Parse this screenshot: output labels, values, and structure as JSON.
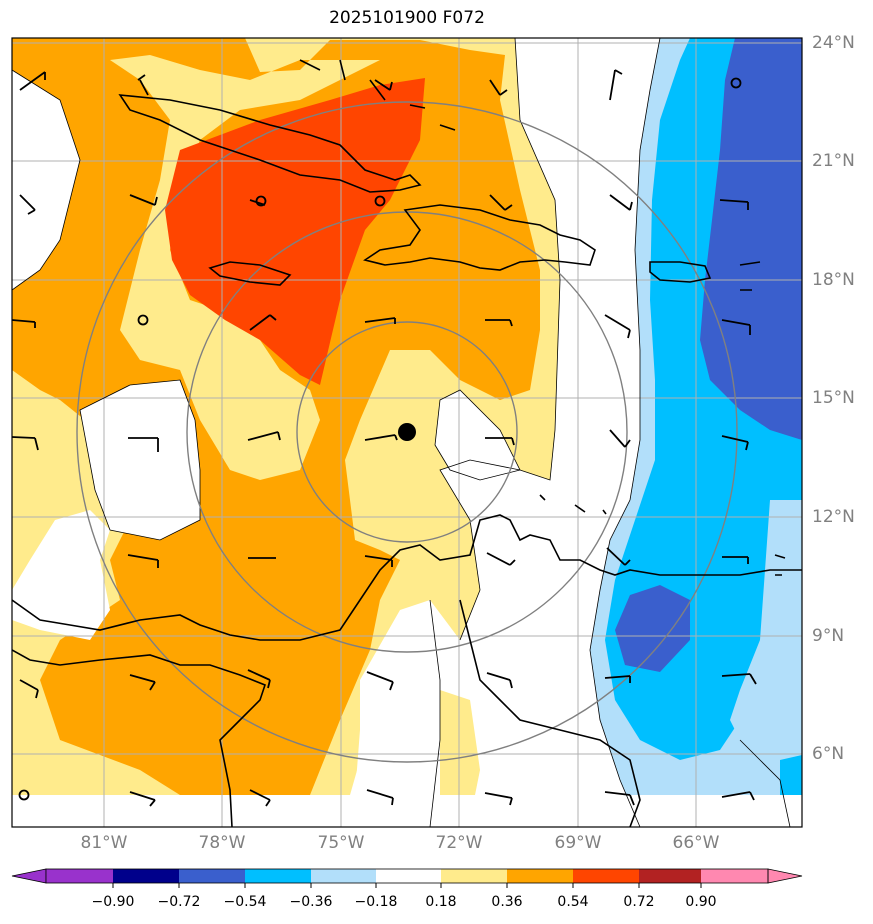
{
  "title": "2025101900 F072",
  "lat_labels": [
    "24°N",
    "21°N",
    "18°N",
    "15°N",
    "12°N",
    "9°N",
    "6°N"
  ],
  "lon_labels": [
    "81°W",
    "78°W",
    "75°W",
    "72°W",
    "69°W",
    "66°W"
  ],
  "colorbar": {
    "ticks": [
      "−0.90",
      "−0.72",
      "−0.54",
      "−0.36",
      "−0.18",
      "0.18",
      "0.36",
      "0.54",
      "0.72",
      "0.90"
    ],
    "colors": [
      "#9932CC",
      "#00008B",
      "#3A5FCD",
      "#00BFFF",
      "#B2DFFA",
      "#FFFFFF",
      "#FFEB8C",
      "#FFA500",
      "#FF4500",
      "#B22222",
      "#FF88B0"
    ]
  },
  "storm_center": {
    "lon": -73.3,
    "lat": 14.1
  }
}
